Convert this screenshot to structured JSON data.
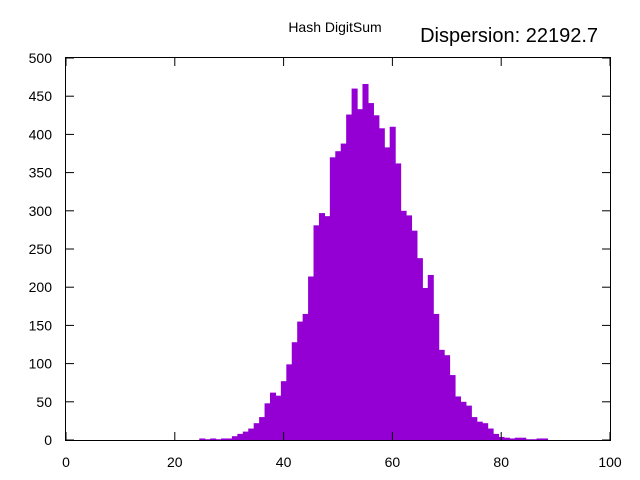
{
  "chart_data": {
    "type": "bar",
    "title": "Hash DigitSum",
    "annotation": "Dispersion: 22192.7",
    "xlim": [
      0,
      100
    ],
    "ylim": [
      0,
      500
    ],
    "x_ticks": [
      "0",
      "20",
      "40",
      "60",
      "80",
      "100"
    ],
    "y_ticks": [
      "0",
      "50",
      "100",
      "150",
      "200",
      "250",
      "300",
      "350",
      "400",
      "450",
      "500"
    ],
    "bar_color": "#9400d3",
    "grid": false,
    "x": [
      25,
      26,
      27,
      28,
      29,
      30,
      31,
      32,
      33,
      34,
      35,
      36,
      37,
      38,
      39,
      40,
      41,
      42,
      43,
      44,
      45,
      46,
      47,
      48,
      49,
      50,
      51,
      52,
      53,
      54,
      55,
      56,
      57,
      58,
      59,
      60,
      61,
      62,
      63,
      64,
      65,
      66,
      67,
      68,
      69,
      70,
      71,
      72,
      73,
      74,
      75,
      76,
      77,
      78,
      79,
      80,
      81,
      82,
      83,
      84,
      85,
      86,
      87,
      88
    ],
    "values": [
      2,
      1,
      2,
      1,
      2,
      2,
      5,
      8,
      11,
      15,
      22,
      30,
      48,
      62,
      58,
      77,
      99,
      128,
      155,
      165,
      214,
      281,
      297,
      293,
      370,
      378,
      388,
      426,
      460,
      433,
      466,
      441,
      425,
      408,
      383,
      410,
      362,
      300,
      294,
      274,
      238,
      199,
      216,
      165,
      118,
      111,
      85,
      57,
      50,
      45,
      30,
      24,
      22,
      15,
      8,
      4,
      3,
      2,
      3,
      3,
      1,
      1,
      2,
      2
    ]
  }
}
